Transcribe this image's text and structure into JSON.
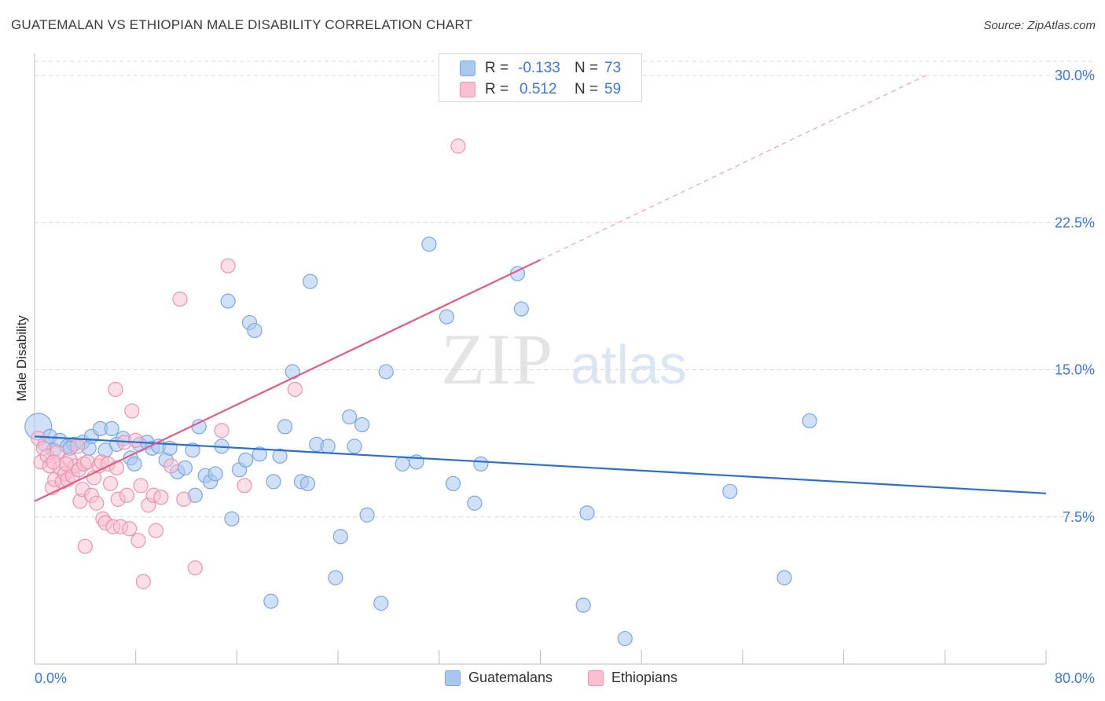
{
  "header": {
    "title": "GUATEMALAN VS ETHIOPIAN MALE DISABILITY CORRELATION CHART",
    "source": "Source: ZipAtlas.com"
  },
  "watermark": {
    "zip": "ZIP",
    "atlas": "atlas"
  },
  "legend_top": {
    "rows": [
      {
        "r_label": "R =",
        "r_value": "-0.133",
        "n_label": "N =",
        "n_value": "73"
      },
      {
        "r_label": "R =",
        "r_value": "0.512",
        "n_label": "N =",
        "n_value": "59"
      }
    ]
  },
  "legend_bottom": {
    "items": [
      "Guatemalans",
      "Ethiopians"
    ]
  },
  "colors": {
    "blue_fill": "#a9c8f0",
    "blue_stroke": "#7aa7e0",
    "blue_line": "#2a6fce",
    "pink_fill": "#f7bfd0",
    "pink_stroke": "#eb93b0",
    "pink_line": "#e05a8a",
    "axis_tick_text": "#3b78d8",
    "grid": "#d9d9d9"
  },
  "chart_data": {
    "type": "scatter",
    "title": "GUATEMALAN VS ETHIOPIAN MALE DISABILITY CORRELATION CHART",
    "xlabel": "",
    "ylabel": "Male Disability",
    "xlim": [
      0,
      80
    ],
    "ylim": [
      0,
      31
    ],
    "x_tick_labels": [
      "0.0%",
      "80.0%"
    ],
    "y_ticks": [
      7.5,
      15.0,
      22.5,
      30.0
    ],
    "y_tick_labels": [
      "7.5%",
      "15.0%",
      "22.5%",
      "30.0%"
    ],
    "grid": "horizontal dashed",
    "legend_placement": "top-center and bottom",
    "series": [
      {
        "name": "Guatemalans",
        "r": -0.133,
        "n": 73,
        "trend": {
          "x": [
            0,
            80
          ],
          "y": [
            11.6,
            8.7
          ]
        },
        "points": [
          [
            0.3,
            12.1
          ],
          [
            0.8,
            11.2
          ],
          [
            1.2,
            11.6
          ],
          [
            1.5,
            10.9
          ],
          [
            2.0,
            11.4
          ],
          [
            2.6,
            11.1
          ],
          [
            3.1,
            11.2
          ],
          [
            3.8,
            11.3
          ],
          [
            4.3,
            11.0
          ],
          [
            4.5,
            11.6
          ],
          [
            5.2,
            12.0
          ],
          [
            5.6,
            10.9
          ],
          [
            6.1,
            12.0
          ],
          [
            6.5,
            11.2
          ],
          [
            7.0,
            11.5
          ],
          [
            7.6,
            10.5
          ],
          [
            7.9,
            10.2
          ],
          [
            8.3,
            11.2
          ],
          [
            8.9,
            11.3
          ],
          [
            9.3,
            11.0
          ],
          [
            9.8,
            11.1
          ],
          [
            10.4,
            10.4
          ],
          [
            10.7,
            11.0
          ],
          [
            11.3,
            9.8
          ],
          [
            11.9,
            10.0
          ],
          [
            12.5,
            10.9
          ],
          [
            12.7,
            8.6
          ],
          [
            13.0,
            12.1
          ],
          [
            13.5,
            9.6
          ],
          [
            13.9,
            9.3
          ],
          [
            14.3,
            9.7
          ],
          [
            14.8,
            11.1
          ],
          [
            15.3,
            18.5
          ],
          [
            15.6,
            7.4
          ],
          [
            16.2,
            9.9
          ],
          [
            16.7,
            10.4
          ],
          [
            17.0,
            17.4
          ],
          [
            17.4,
            17.0
          ],
          [
            17.8,
            10.7
          ],
          [
            18.7,
            3.2
          ],
          [
            18.9,
            9.3
          ],
          [
            19.4,
            10.6
          ],
          [
            19.8,
            12.1
          ],
          [
            20.4,
            14.9
          ],
          [
            21.1,
            9.3
          ],
          [
            21.6,
            9.2
          ],
          [
            21.8,
            19.5
          ],
          [
            22.3,
            11.2
          ],
          [
            23.2,
            11.1
          ],
          [
            23.8,
            4.4
          ],
          [
            24.2,
            6.5
          ],
          [
            24.9,
            12.6
          ],
          [
            25.3,
            11.1
          ],
          [
            25.9,
            12.2
          ],
          [
            26.3,
            7.6
          ],
          [
            27.4,
            3.1
          ],
          [
            27.8,
            14.9
          ],
          [
            29.1,
            10.2
          ],
          [
            30.2,
            10.3
          ],
          [
            31.2,
            21.4
          ],
          [
            32.6,
            17.7
          ],
          [
            33.1,
            9.2
          ],
          [
            34.8,
            8.2
          ],
          [
            35.3,
            10.2
          ],
          [
            38.2,
            19.9
          ],
          [
            38.5,
            18.1
          ],
          [
            43.4,
            3.0
          ],
          [
            43.7,
            7.7
          ],
          [
            46.7,
            1.3
          ],
          [
            55.0,
            8.8
          ],
          [
            59.3,
            4.4
          ],
          [
            61.3,
            12.4
          ],
          [
            2.8,
            11.0
          ]
        ],
        "sizes": [
          34
        ]
      },
      {
        "name": "Ethiopians",
        "r": 0.512,
        "n": 59,
        "trend": {
          "x": [
            0,
            40
          ],
          "y": [
            8.3,
            20.6
          ]
        },
        "trend_dashed": {
          "x": [
            40,
            70.5
          ],
          "y": [
            20.6,
            30.0
          ]
        },
        "points": [
          [
            0.3,
            11.5
          ],
          [
            0.5,
            10.3
          ],
          [
            0.7,
            11.0
          ],
          [
            1.0,
            10.6
          ],
          [
            1.2,
            10.1
          ],
          [
            1.4,
            9.0
          ],
          [
            1.6,
            9.4
          ],
          [
            1.8,
            10.8
          ],
          [
            2.0,
            10.0
          ],
          [
            2.2,
            9.3
          ],
          [
            2.4,
            9.7
          ],
          [
            2.6,
            9.4
          ],
          [
            2.8,
            10.4
          ],
          [
            3.0,
            9.6
          ],
          [
            3.2,
            10.1
          ],
          [
            3.4,
            11.1
          ],
          [
            3.5,
            9.9
          ],
          [
            3.6,
            8.3
          ],
          [
            3.8,
            8.9
          ],
          [
            3.9,
            10.2
          ],
          [
            4.0,
            6.0
          ],
          [
            4.2,
            10.3
          ],
          [
            4.5,
            8.6
          ],
          [
            4.7,
            9.5
          ],
          [
            4.9,
            8.2
          ],
          [
            5.1,
            10.1
          ],
          [
            5.3,
            10.3
          ],
          [
            5.4,
            7.4
          ],
          [
            5.6,
            7.2
          ],
          [
            5.8,
            10.2
          ],
          [
            6.0,
            9.2
          ],
          [
            6.2,
            7.0
          ],
          [
            6.4,
            14.0
          ],
          [
            6.6,
            8.4
          ],
          [
            6.8,
            7.0
          ],
          [
            7.1,
            11.3
          ],
          [
            7.3,
            8.6
          ],
          [
            7.5,
            6.9
          ],
          [
            7.7,
            12.9
          ],
          [
            8.0,
            11.4
          ],
          [
            8.2,
            6.3
          ],
          [
            8.4,
            9.1
          ],
          [
            8.6,
            4.2
          ],
          [
            9.0,
            8.1
          ],
          [
            9.4,
            8.6
          ],
          [
            9.6,
            6.8
          ],
          [
            10.0,
            8.5
          ],
          [
            11.5,
            18.6
          ],
          [
            11.8,
            8.4
          ],
          [
            12.7,
            4.9
          ],
          [
            14.8,
            11.9
          ],
          [
            15.3,
            20.3
          ],
          [
            16.6,
            9.1
          ],
          [
            20.6,
            14.0
          ],
          [
            33.5,
            26.4
          ],
          [
            2.5,
            10.2
          ],
          [
            1.5,
            10.3
          ],
          [
            6.5,
            10.0
          ],
          [
            10.8,
            10.1
          ]
        ]
      }
    ]
  }
}
